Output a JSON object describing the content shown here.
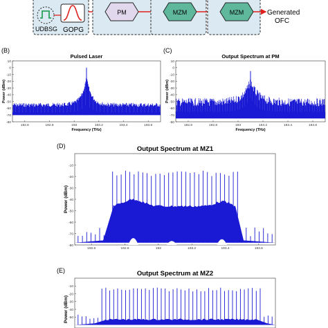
{
  "diagram": {
    "blocks": [
      "UDBSG",
      "GOPG",
      "PM",
      "MZM",
      "MZM"
    ],
    "output_label_line1": "Generated",
    "output_label_line2": "OFC",
    "colors": {
      "box_fill": "#dbeaf2",
      "pm_fill": "#e2d8ee",
      "mzm_fill": "#5fb89c",
      "arrow": "#e0201b",
      "gopg": "#e0201b",
      "udbsg": "#2aa05a"
    }
  },
  "panel_labels": {
    "b": "(B)",
    "c": "(C)",
    "d": "(D)",
    "e": "(E)"
  },
  "chart_data": [
    {
      "id": "b",
      "type": "line",
      "title": "Pulsed Laser",
      "xlabel": "Frequency (THz)",
      "ylabel": "Power (dBm)",
      "xlim": [
        192.5,
        193.7
      ],
      "ylim": [
        -80,
        10
      ],
      "xticks": [
        "192.6",
        "192.8",
        "193",
        "193.2",
        "193.4",
        "193.6"
      ],
      "xtick_values": [
        192.6,
        192.8,
        193.0,
        193.2,
        193.4,
        193.6
      ],
      "yticks": [
        "10",
        "0",
        "-10",
        "-20",
        "-30",
        "-40",
        "-50",
        "-60",
        "-70",
        "-80"
      ],
      "ytick_values": [
        10,
        0,
        -10,
        -20,
        -30,
        -40,
        -50,
        -60,
        -70,
        -80
      ],
      "series": [
        {
          "color": "#1a1ad4",
          "shape": "pulsed-laser",
          "center": 193.1,
          "peak": 0,
          "floor": -70,
          "lines": 60,
          "spacing": 0.02
        }
      ]
    },
    {
      "id": "c",
      "type": "line",
      "title": "Output Spectrum at PM",
      "xlabel": "Frequency (THz)",
      "ylabel": "Power (dBm)",
      "xlim": [
        192.5,
        193.7
      ],
      "ylim": [
        -80,
        10
      ],
      "xticks": [
        "192.6",
        "192.8",
        "193",
        "193.2",
        "193.4",
        "193.6"
      ],
      "xtick_values": [
        192.6,
        192.8,
        193.0,
        193.2,
        193.4,
        193.6
      ],
      "yticks": [
        "10",
        "0",
        "-10",
        "-20",
        "-30",
        "-40",
        "-50",
        "-60",
        "-70",
        "-80"
      ],
      "ytick_values": [
        10,
        0,
        -10,
        -20,
        -30,
        -40,
        -50,
        -60,
        -70,
        -80
      ],
      "series": [
        {
          "color": "#1a1ad4",
          "shape": "pm",
          "center": 193.1,
          "peak": -5,
          "floor": -75,
          "lines": 60,
          "spacing": 0.02
        }
      ]
    },
    {
      "id": "d",
      "type": "line",
      "title": "Output Spectrum at MZ1",
      "xlabel": "",
      "ylabel": "Power (dBm)",
      "xlim": [
        192.5,
        193.7
      ],
      "ylim": [
        -80,
        0
      ],
      "xticks": [
        "192.6",
        "192.8",
        "193",
        "193.2",
        "193.4",
        "193.6"
      ],
      "xtick_values": [
        192.6,
        192.8,
        193.0,
        193.2,
        193.4,
        193.6
      ],
      "yticks": [
        "-10",
        "-20",
        "-30",
        "-40",
        "-50",
        "-60",
        "-70",
        "-80"
      ],
      "ytick_values": [
        -10,
        -20,
        -30,
        -40,
        -50,
        -60,
        -70,
        -80
      ],
      "series": [
        {
          "color": "#1a1ad4",
          "shape": "mz1",
          "band": [
            192.71,
            193.48
          ],
          "line_top": -15,
          "floor": -78,
          "lines": 46,
          "spacing": 0.02
        }
      ]
    },
    {
      "id": "e",
      "type": "line",
      "title": "Output Spectrum at MZ2",
      "xlabel": "",
      "ylabel": "Power (dBm)",
      "xlim": [
        192.5,
        193.7
      ],
      "ylim": [
        -80,
        0
      ],
      "xticks": [],
      "xtick_values": [],
      "yticks": [
        "-10",
        "-20",
        "-30",
        "-40",
        "-50"
      ],
      "ytick_values": [
        -10,
        -20,
        -30,
        -40,
        -50
      ],
      "series": [
        {
          "color": "#1a1ad4",
          "shape": "mz2",
          "band": [
            192.66,
            193.62
          ],
          "line_top": -12,
          "floor": -60,
          "lines": 50,
          "spacing": 0.02
        }
      ]
    }
  ]
}
